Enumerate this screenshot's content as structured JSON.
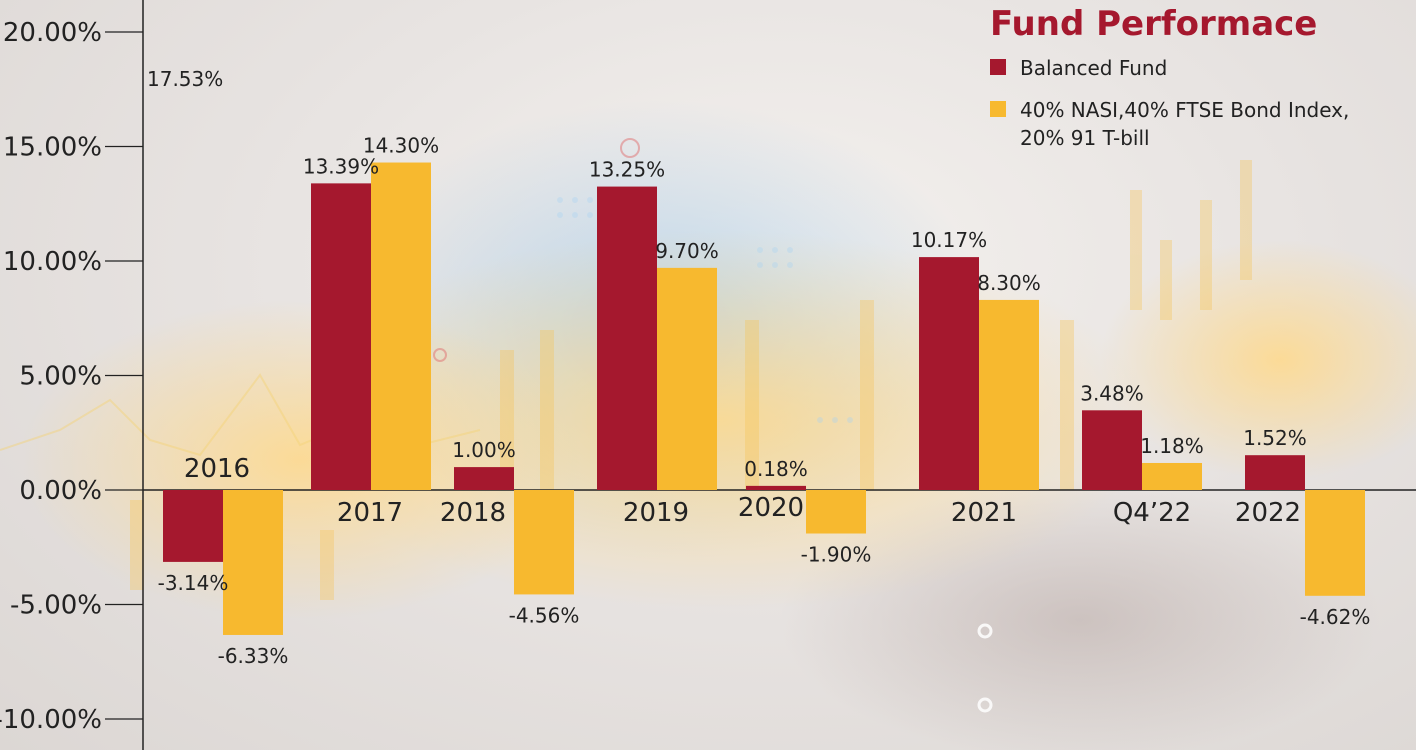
{
  "colors": {
    "balanced": "#a5182e",
    "benchmark": "#f7b92f",
    "axis": "#222222",
    "title": "#a5182e"
  },
  "legend": {
    "title": "Fund Performace",
    "items": [
      {
        "label": "Balanced Fund",
        "color": "#a5182e"
      },
      {
        "label": "40% NASI,40% FTSE Bond Index, 20% 91 T-bill",
        "color": "#f7b92f"
      }
    ]
  },
  "chart_data": {
    "type": "bar",
    "title": "Fund Performace",
    "categories": [
      "2016",
      "2017",
      "2018",
      "2019",
      "2020",
      "2021",
      "Q4’22",
      "2022"
    ],
    "series": [
      {
        "name": "Balanced Fund",
        "values": [
          -3.14,
          13.39,
          1.0,
          13.25,
          0.18,
          10.17,
          3.48,
          1.52
        ],
        "labels": [
          "-3.14%",
          "13.39%",
          "1.00%",
          "13.25%",
          "0.18%",
          "10.17%",
          "3.48%",
          "1.52%"
        ]
      },
      {
        "name": "40% NASI,40% FTSE Bond Index, 20% 91 T-bill",
        "values": [
          -6.33,
          14.3,
          -4.56,
          9.7,
          -1.9,
          8.3,
          1.18,
          -4.62
        ],
        "labels": [
          "-6.33%",
          "14.30%",
          "-4.56%",
          "9.70%",
          "-1.90%",
          "8.30%",
          "1.18%",
          "-4.62%"
        ]
      }
    ],
    "annotation": "17.53%",
    "ylim": [
      -10,
      20
    ],
    "yticks": [
      20,
      15,
      10,
      5,
      0,
      -5,
      -10
    ],
    "ytick_labels": [
      "20.00%",
      "15.00%",
      "10.00%",
      "5.00%",
      "0.00%",
      "-5.00%",
      "-10.00%"
    ],
    "xlabel": "",
    "ylabel": "",
    "grid": false,
    "legend_position": "top-right"
  }
}
